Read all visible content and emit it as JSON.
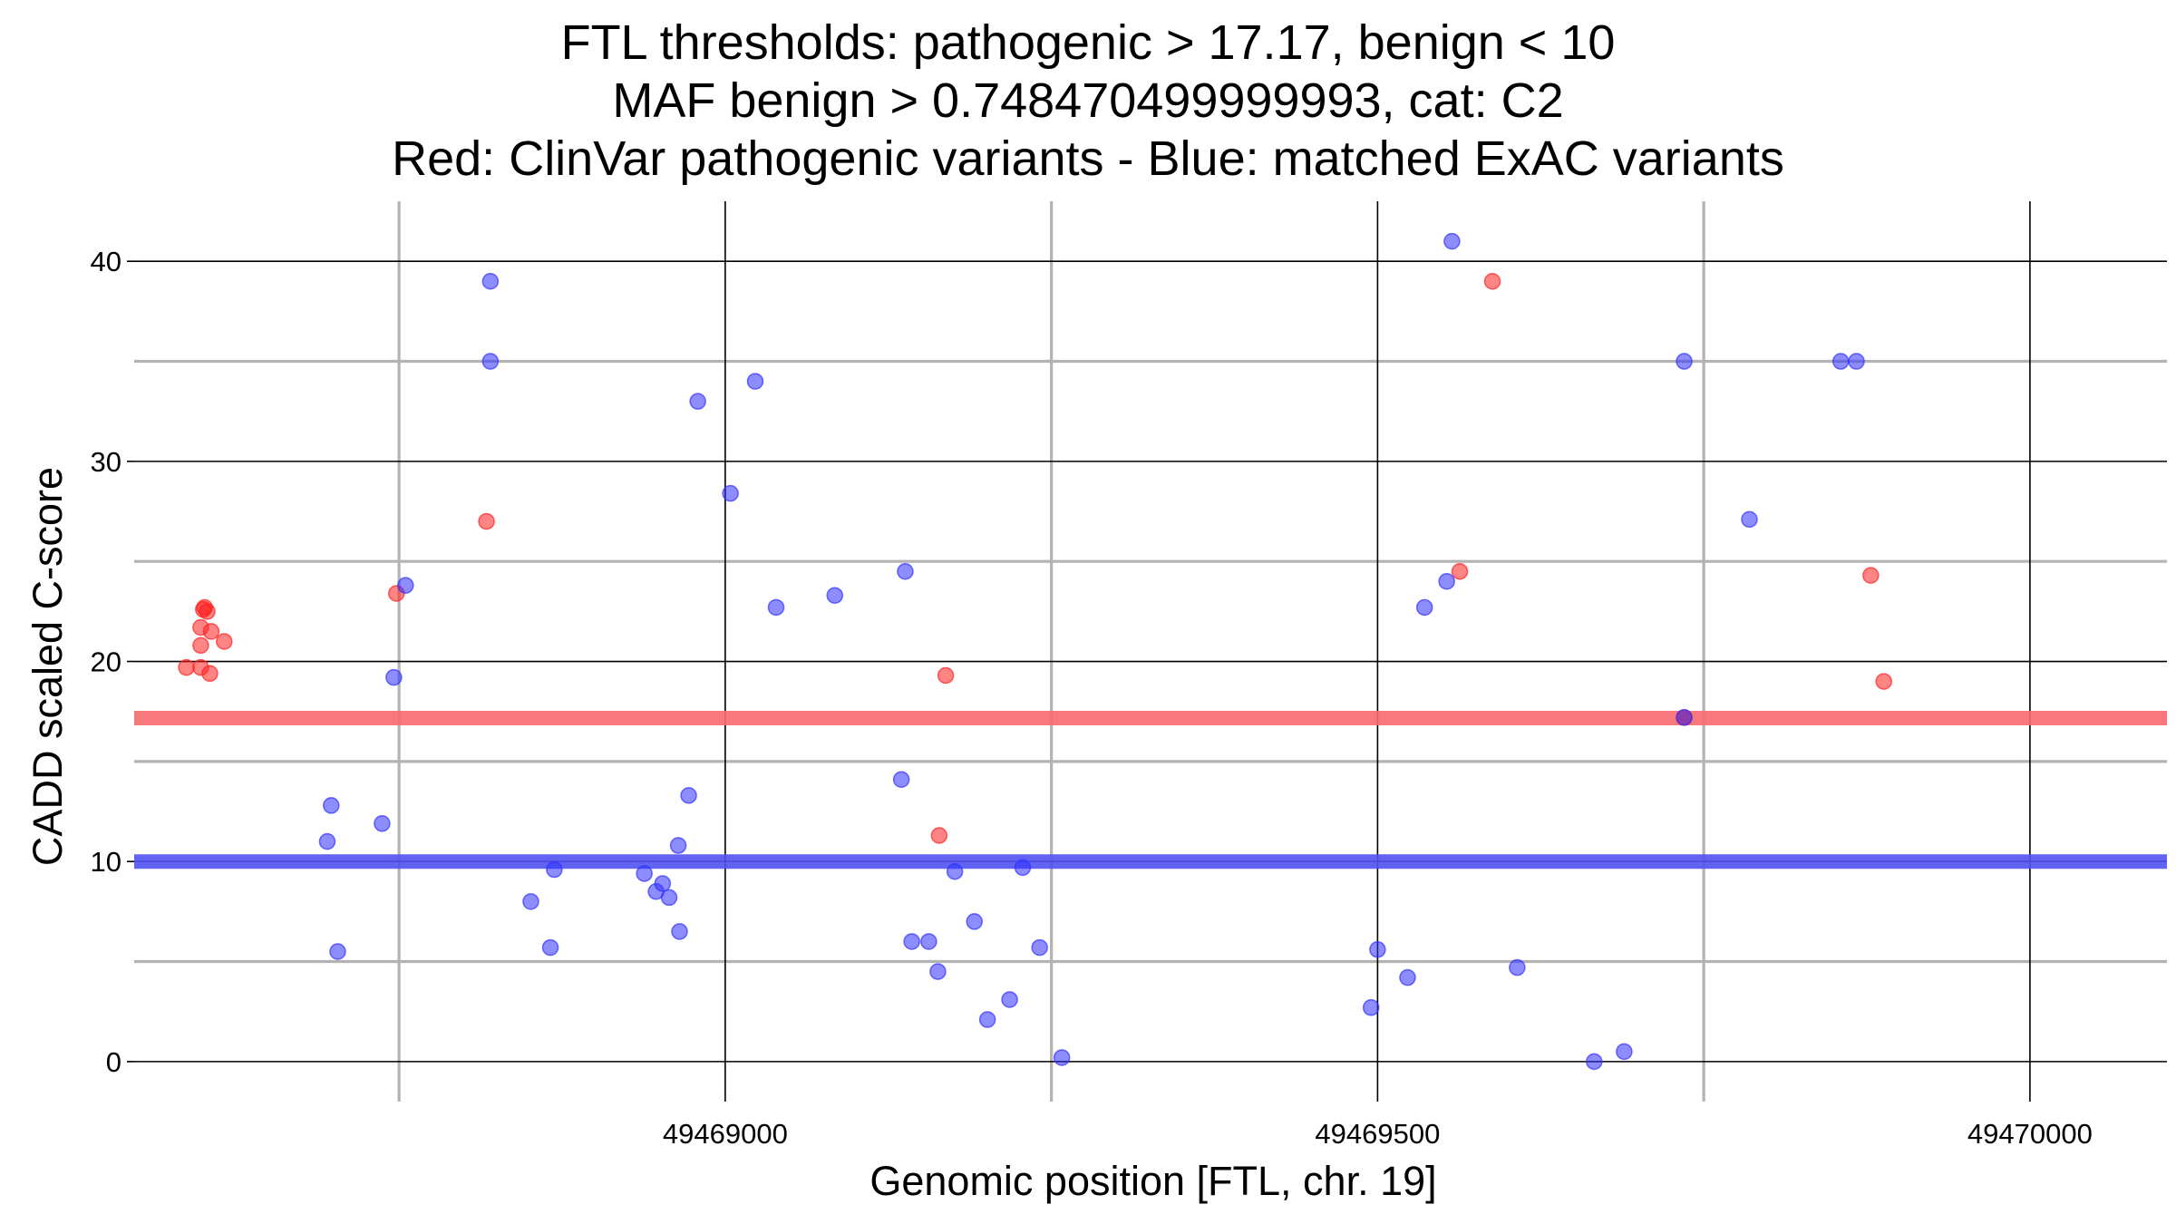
{
  "chart_data": {
    "type": "scatter",
    "title_lines": [
      "FTL thresholds: pathogenic > 17.17, benign < 10",
      "MAF benign > 0.748470499999993, cat: C2",
      "Red: ClinVar pathogenic variants - Blue: matched ExAC variants"
    ],
    "xlabel": "Genomic position [FTL, chr. 19]",
    "ylabel": "CADD scaled C-score",
    "xlim": [
      49468547,
      49470105
    ],
    "ylim": [
      -2,
      43
    ],
    "x_ticks": [
      49469000,
      49469500,
      49470000
    ],
    "x_tick_labels": [
      "49469000",
      "49469500",
      "49470000"
    ],
    "x_minor_gridlines": [
      49468750,
      49469250,
      49469750
    ],
    "y_ticks": [
      0,
      10,
      20,
      30,
      40
    ],
    "y_tick_labels": [
      "0",
      "10",
      "20",
      "30",
      "40"
    ],
    "y_minor_gridlines": [
      5,
      15,
      25,
      35
    ],
    "thresholds": [
      {
        "name": "pathogenic",
        "value": 17.17,
        "color": "#f66a70"
      },
      {
        "name": "benign",
        "value": 10,
        "color": "#5252f2"
      }
    ],
    "series": [
      {
        "name": "ClinVar pathogenic variants",
        "color": "#ff2020",
        "points": [
          [
            49468587,
            19.7
          ],
          [
            49468598,
            19.7
          ],
          [
            49468598,
            20.8
          ],
          [
            49468598,
            21.7
          ],
          [
            49468600,
            22.6
          ],
          [
            49468601,
            22.7
          ],
          [
            49468603,
            22.5
          ],
          [
            49468605,
            19.4
          ],
          [
            49468606,
            21.5
          ],
          [
            49468616,
            21.0
          ],
          [
            49468748,
            23.4
          ],
          [
            49468817,
            27.0
          ],
          [
            49469164,
            11.3
          ],
          [
            49469169,
            19.3
          ],
          [
            49469563,
            24.5
          ],
          [
            49469588,
            39.0
          ],
          [
            49469878,
            24.3
          ],
          [
            49469888,
            19.0
          ],
          [
            49469735,
            17.2
          ]
        ]
      },
      {
        "name": "matched ExAC variants",
        "color": "#3030ff",
        "points": [
          [
            49468695,
            11.0
          ],
          [
            49468698,
            12.8
          ],
          [
            49468703,
            5.5
          ],
          [
            49468737,
            11.9
          ],
          [
            49468746,
            19.2
          ],
          [
            49468755,
            23.8
          ],
          [
            49468820,
            39.0
          ],
          [
            49468820,
            35.0
          ],
          [
            49468851,
            8.0
          ],
          [
            49468866,
            5.7
          ],
          [
            49468869,
            9.6
          ],
          [
            49468938,
            9.4
          ],
          [
            49468947,
            8.5
          ],
          [
            49468952,
            8.9
          ],
          [
            49468957,
            8.2
          ],
          [
            49468964,
            10.8
          ],
          [
            49468965,
            6.5
          ],
          [
            49468972,
            13.3
          ],
          [
            49468979,
            33.0
          ],
          [
            49469004,
            28.4
          ],
          [
            49469023,
            34.0
          ],
          [
            49469039,
            22.7
          ],
          [
            49469084,
            23.3
          ],
          [
            49469135,
            14.1
          ],
          [
            49469138,
            24.5
          ],
          [
            49469143,
            6.0
          ],
          [
            49469156,
            6.0
          ],
          [
            49469163,
            4.5
          ],
          [
            49469176,
            9.5
          ],
          [
            49469191,
            7.0
          ],
          [
            49469201,
            2.1
          ],
          [
            49469218,
            3.1
          ],
          [
            49469228,
            9.7
          ],
          [
            49469241,
            5.7
          ],
          [
            49469258,
            0.2
          ],
          [
            49469495,
            2.7
          ],
          [
            49469500,
            5.6
          ],
          [
            49469523,
            4.2
          ],
          [
            49469536,
            22.7
          ],
          [
            49469553,
            24.0
          ],
          [
            49469557,
            41.0
          ],
          [
            49469607,
            4.7
          ],
          [
            49469666,
            0.0
          ],
          [
            49469689,
            0.5
          ],
          [
            49469735,
            35.0
          ],
          [
            49469785,
            27.1
          ],
          [
            49469855,
            35.0
          ],
          [
            49469867,
            35.0
          ],
          [
            49469735,
            17.2
          ]
        ]
      }
    ]
  }
}
